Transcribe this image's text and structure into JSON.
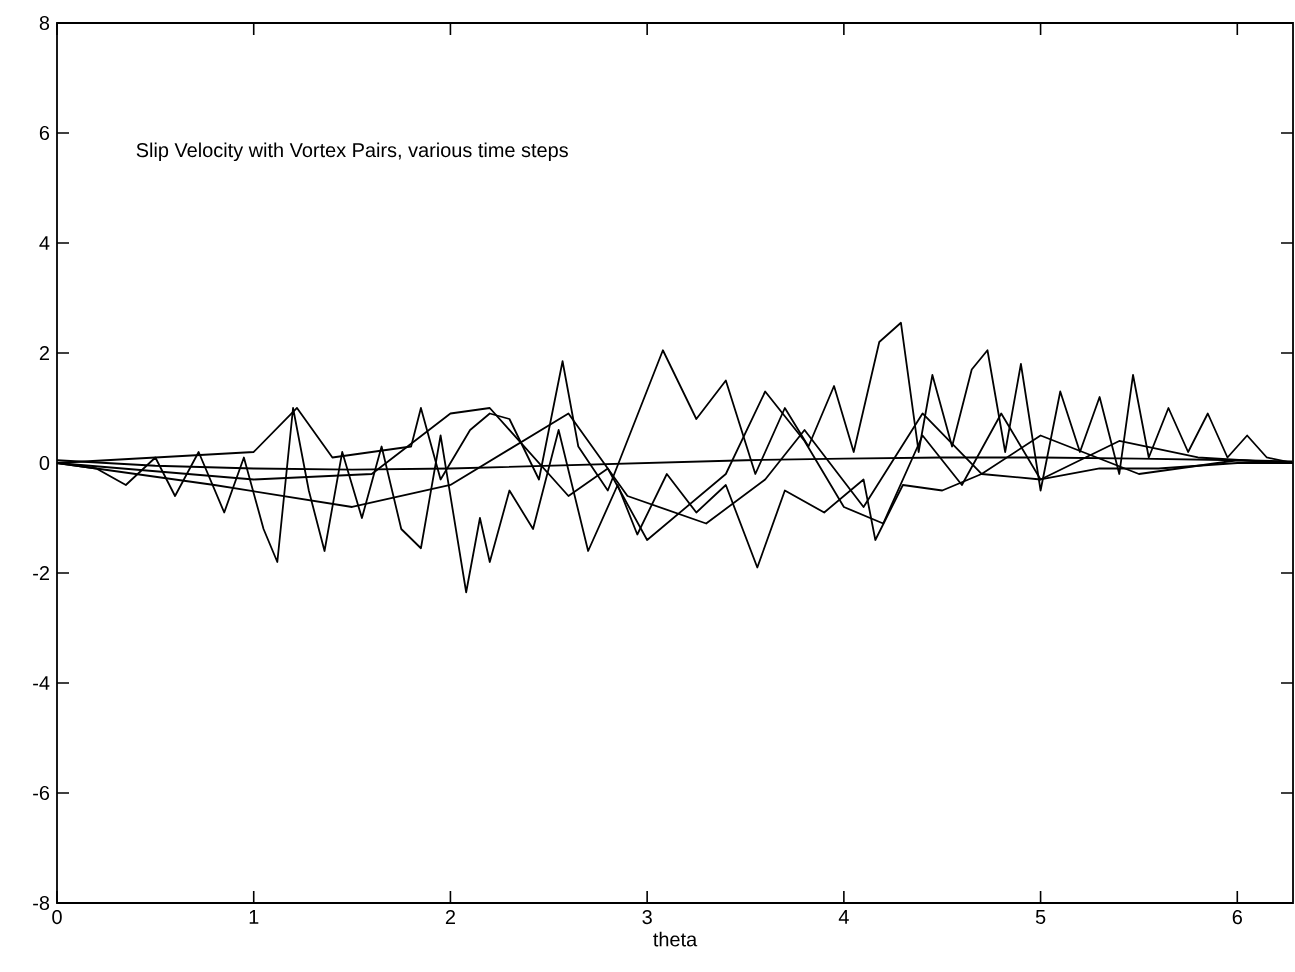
{
  "chart_data": {
    "type": "line",
    "title": "Slip Velocity with Vortex Pairs, various time steps",
    "xlabel": "theta",
    "xlim": [
      0,
      6.2832
    ],
    "ylim": [
      -8,
      8
    ],
    "xticks": [
      0,
      1,
      2,
      3,
      4,
      5,
      6
    ],
    "yticks": [
      -8,
      -6,
      -4,
      -2,
      0,
      2,
      4,
      6,
      8
    ],
    "grid": false,
    "marker": "none",
    "line_style": "solid",
    "series": [
      {
        "color": "#000000",
        "x": [
          0,
          0.5,
          1,
          1.5,
          2,
          2.5,
          3,
          3.5,
          4,
          4.5,
          5,
          5.5,
          6,
          6.28
        ],
        "values": [
          0.05,
          -0.05,
          -0.1,
          -0.12,
          -0.1,
          -0.05,
          0,
          0.05,
          0.08,
          0.1,
          0.1,
          0.08,
          0.05,
          0.03
        ]
      },
      {
        "color": "#000000",
        "x": [
          0,
          0.2,
          0.35,
          0.5,
          0.6,
          0.72,
          0.85,
          0.95,
          1.05,
          1.12,
          1.2,
          1.28,
          1.36,
          1.45,
          1.55,
          1.65,
          1.75,
          1.85,
          1.95,
          2.08,
          2.15,
          2.2,
          2.3,
          2.42,
          2.55,
          2.7,
          2.85,
          2.95,
          3.1,
          3.25,
          3.4,
          3.56,
          3.7,
          3.9,
          4.1,
          4.16,
          4.3,
          4.5,
          4.7,
          5.0,
          5.3,
          5.6,
          6.0,
          6.28
        ],
        "values": [
          0,
          -0.1,
          -0.4,
          0.1,
          -0.6,
          0.2,
          -0.9,
          0.1,
          -1.2,
          -1.8,
          1.0,
          -0.5,
          -1.6,
          0.2,
          -1.0,
          0.3,
          -1.2,
          -1.55,
          0.5,
          -2.35,
          -1.0,
          -1.8,
          -0.5,
          -1.2,
          0.6,
          -1.6,
          -0.4,
          -1.3,
          -0.2,
          -0.9,
          -0.4,
          -1.9,
          -0.5,
          -0.9,
          -0.3,
          -1.4,
          -0.4,
          -0.5,
          -0.2,
          -0.3,
          -0.1,
          -0.1,
          0,
          0
        ]
      },
      {
        "color": "#000000",
        "x": [
          0,
          0.5,
          1,
          1.22,
          1.4,
          1.8,
          1.85,
          1.95,
          2.1,
          2.2,
          2.3,
          2.45,
          2.57,
          2.65,
          2.8,
          3.08,
          3.25,
          3.4,
          3.55,
          3.7,
          3.82,
          3.95,
          4.05,
          4.18,
          4.29,
          4.38,
          4.45,
          4.55,
          4.65,
          4.73,
          4.82,
          4.9,
          5.0,
          5.1,
          5.2,
          5.3,
          5.4,
          5.47,
          5.55,
          5.65,
          5.75,
          5.85,
          5.95,
          6.05,
          6.15,
          6.28
        ],
        "values": [
          0,
          0.1,
          0.2,
          1.0,
          0.1,
          0.3,
          1.0,
          -0.3,
          0.6,
          0.9,
          0.8,
          -0.3,
          1.85,
          0.3,
          -0.5,
          2.05,
          0.8,
          1.5,
          -0.2,
          1.0,
          0.3,
          1.4,
          0.2,
          2.2,
          2.55,
          0.2,
          1.6,
          0.3,
          1.7,
          2.05,
          0.2,
          1.8,
          -0.5,
          1.3,
          0.2,
          1.2,
          -0.2,
          1.6,
          0.1,
          1.0,
          0.2,
          0.9,
          0.1,
          0.5,
          0.1,
          0
        ]
      },
      {
        "color": "#000000",
        "x": [
          0,
          1,
          1.6,
          2.0,
          2.2,
          2.4,
          2.6,
          2.8,
          3.0,
          3.2,
          3.4,
          3.6,
          3.8,
          4.0,
          4.2,
          4.4,
          4.6,
          4.8,
          5.0,
          5.4,
          5.8,
          6.28
        ],
        "values": [
          0,
          -0.3,
          -0.2,
          0.9,
          1.0,
          0.2,
          -0.6,
          -0.1,
          -1.4,
          -0.8,
          -0.2,
          1.3,
          0.4,
          -0.8,
          -1.1,
          0.5,
          -0.4,
          0.9,
          -0.3,
          0.4,
          0.1,
          0
        ]
      },
      {
        "color": "#000000",
        "x": [
          0,
          0.8,
          1.5,
          2.0,
          2.6,
          2.9,
          3.3,
          3.6,
          3.8,
          4.1,
          4.4,
          4.7,
          5.0,
          5.5,
          6.0,
          6.28
        ],
        "values": [
          0,
          -0.4,
          -0.8,
          -0.4,
          0.9,
          -0.6,
          -1.1,
          -0.3,
          0.6,
          -0.8,
          0.9,
          -0.2,
          0.5,
          -0.2,
          0.05,
          0
        ]
      }
    ]
  }
}
